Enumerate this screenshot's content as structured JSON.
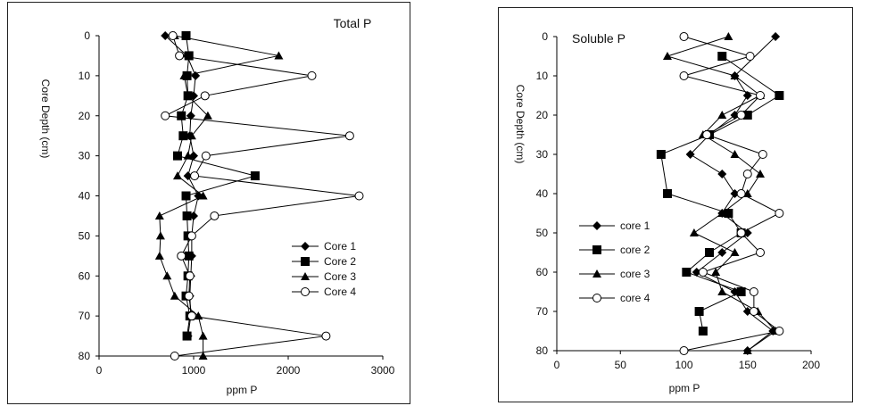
{
  "chart_data": [
    {
      "type": "line",
      "title": "Total P",
      "xlabel": "ppm P",
      "ylabel": "Core Depth (cm)",
      "xlim": [
        0,
        3000
      ],
      "ylim": [
        0,
        80
      ],
      "y_inverted": true,
      "xticks": [
        "0",
        "1000",
        "2000",
        "3000"
      ],
      "yticks": [
        "0",
        "10",
        "20",
        "30",
        "40",
        "50",
        "60",
        "70",
        "80"
      ],
      "legend_position": "bottom-right",
      "series": [
        {
          "name": "Core 1",
          "marker": "diamond",
          "points": [
            [
              700,
              0
            ],
            [
              930,
              5
            ],
            [
              1020,
              10
            ],
            [
              1000,
              15
            ],
            [
              970,
              20
            ],
            [
              960,
              25
            ],
            [
              1000,
              30
            ],
            [
              940,
              35
            ],
            [
              1050,
              40
            ],
            [
              1000,
              45
            ],
            [
              980,
              50
            ],
            [
              980,
              55
            ],
            [
              970,
              60
            ],
            [
              960,
              65
            ],
            [
              970,
              70
            ],
            [
              940,
              75
            ]
          ]
        },
        {
          "name": "Core 2",
          "marker": "square",
          "points": [
            [
              920,
              0
            ],
            [
              950,
              5
            ],
            [
              930,
              10
            ],
            [
              940,
              15
            ],
            [
              870,
              20
            ],
            [
              890,
              25
            ],
            [
              830,
              30
            ],
            [
              1650,
              35
            ],
            [
              920,
              40
            ],
            [
              930,
              45
            ],
            [
              940,
              50
            ],
            [
              950,
              55
            ],
            [
              940,
              60
            ],
            [
              920,
              65
            ],
            [
              960,
              70
            ],
            [
              930,
              75
            ]
          ]
        },
        {
          "name": "Core 3",
          "marker": "triangle",
          "points": [
            [
              800,
              0
            ],
            [
              1900,
              5
            ],
            [
              900,
              10
            ],
            [
              940,
              15
            ],
            [
              1150,
              20
            ],
            [
              980,
              25
            ],
            [
              940,
              30
            ],
            [
              830,
              35
            ],
            [
              1100,
              40
            ],
            [
              640,
              45
            ],
            [
              650,
              50
            ],
            [
              640,
              55
            ],
            [
              720,
              60
            ],
            [
              800,
              65
            ],
            [
              1050,
              70
            ],
            [
              1100,
              75
            ],
            [
              1100,
              80
            ]
          ]
        },
        {
          "name": "Core 4",
          "marker": "circle",
          "points": [
            [
              780,
              0
            ],
            [
              850,
              5
            ],
            [
              2250,
              10
            ],
            [
              1120,
              15
            ],
            [
              700,
              20
            ],
            [
              2650,
              25
            ],
            [
              1130,
              30
            ],
            [
              1010,
              35
            ],
            [
              2750,
              40
            ],
            [
              1220,
              45
            ],
            [
              980,
              50
            ],
            [
              870,
              55
            ],
            [
              960,
              60
            ],
            [
              950,
              65
            ],
            [
              980,
              70
            ],
            [
              2400,
              75
            ],
            [
              800,
              80
            ]
          ]
        }
      ]
    },
    {
      "type": "line",
      "title": "Soluble P",
      "xlabel": "ppm P",
      "ylabel": "Core Depth (cm)",
      "xlim": [
        0,
        200
      ],
      "ylim": [
        0,
        80
      ],
      "y_inverted": true,
      "xticks": [
        "0",
        "50",
        "100",
        "150",
        "200"
      ],
      "yticks": [
        "0",
        "10",
        "20",
        "30",
        "40",
        "50",
        "60",
        "70",
        "80"
      ],
      "legend_position": "bottom-left",
      "series": [
        {
          "name": "core 1",
          "marker": "diamond",
          "points": [
            [
              172,
              0
            ],
            [
              140,
              10
            ],
            [
              150,
              15
            ],
            [
              140,
              20
            ],
            [
              120,
              25
            ],
            [
              105,
              30
            ],
            [
              130,
              35
            ],
            [
              140,
              40
            ],
            [
              130,
              45
            ],
            [
              150,
              50
            ],
            [
              130,
              55
            ],
            [
              110,
              60
            ],
            [
              140,
              65
            ],
            [
              150,
              70
            ],
            [
              170,
              75
            ],
            [
              150,
              80
            ]
          ]
        },
        {
          "name": "core 2",
          "marker": "square",
          "points": [
            [
              130,
              5
            ],
            [
              175,
              15
            ],
            [
              150,
              20
            ],
            [
              120,
              25
            ],
            [
              82,
              30
            ],
            [
              87,
              40
            ],
            [
              135,
              45
            ],
            [
              145,
              50
            ],
            [
              120,
              55
            ],
            [
              102,
              60
            ],
            [
              145,
              65
            ],
            [
              112,
              70
            ],
            [
              115,
              75
            ]
          ]
        },
        {
          "name": "core 3",
          "marker": "triangle",
          "points": [
            [
              135,
              0
            ],
            [
              87,
              5
            ],
            [
              140,
              10
            ],
            [
              160,
              15
            ],
            [
              130,
              20
            ],
            [
              115,
              25
            ],
            [
              140,
              30
            ],
            [
              160,
              35
            ],
            [
              150,
              40
            ],
            [
              130,
              45
            ],
            [
              108,
              50
            ],
            [
              140,
              55
            ],
            [
              125,
              60
            ],
            [
              130,
              65
            ],
            [
              158,
              70
            ],
            [
              172,
              75
            ],
            [
              150,
              80
            ]
          ]
        },
        {
          "name": "core 4",
          "marker": "circle",
          "points": [
            [
              100,
              0
            ],
            [
              152,
              5
            ],
            [
              100,
              10
            ],
            [
              160,
              15
            ],
            [
              145,
              20
            ],
            [
              118,
              25
            ],
            [
              162,
              30
            ],
            [
              150,
              35
            ],
            [
              145,
              40
            ],
            [
              175,
              45
            ],
            [
              145,
              50
            ],
            [
              160,
              55
            ],
            [
              115,
              60
            ],
            [
              155,
              65
            ],
            [
              155,
              70
            ],
            [
              175,
              75
            ],
            [
              100,
              80
            ]
          ]
        }
      ]
    }
  ]
}
